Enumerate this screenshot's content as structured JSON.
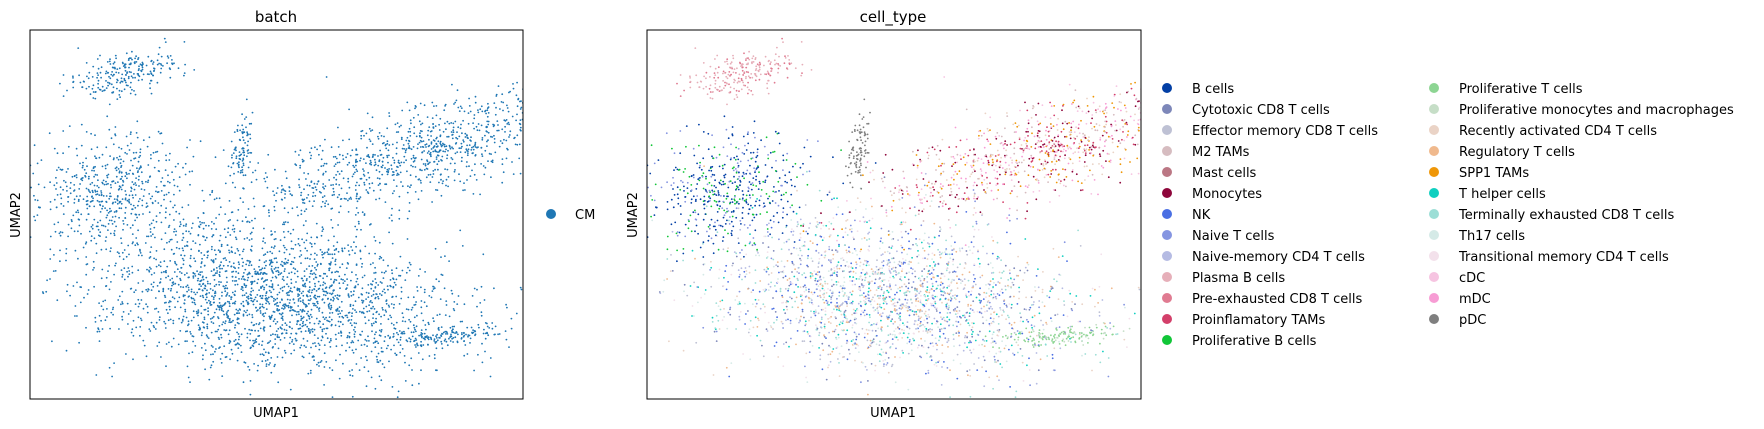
{
  "chart_data": [
    {
      "type": "scatter",
      "title": "batch",
      "xlabel": "UMAP1",
      "ylabel": "UMAP2",
      "grid": false,
      "ticks": "none",
      "legend_position": "right",
      "legend": [
        {
          "label": "CM",
          "color": "#1f77b4"
        }
      ]
    },
    {
      "type": "scatter",
      "title": "cell_type",
      "xlabel": "UMAP1",
      "ylabel": "UMAP2",
      "grid": false,
      "ticks": "none",
      "legend_position": "right",
      "legend": [
        {
          "label": "B cells",
          "color": "#023fa5"
        },
        {
          "label": "Cytotoxic CD8 T cells",
          "color": "#7d87b9"
        },
        {
          "label": "Effector memory CD8 T cells",
          "color": "#bec1d4"
        },
        {
          "label": "M2 TAMs",
          "color": "#d6bcc0"
        },
        {
          "label": "Mast cells",
          "color": "#bb7784"
        },
        {
          "label": "Monocytes",
          "color": "#8e063b"
        },
        {
          "label": "NK",
          "color": "#4a6fe3"
        },
        {
          "label": "Naive T cells",
          "color": "#8595e1"
        },
        {
          "label": "Naive-memory CD4 T cells",
          "color": "#b5bbe3"
        },
        {
          "label": "Plasma B cells",
          "color": "#e6afb9"
        },
        {
          "label": "Pre-exhausted CD8 T cells",
          "color": "#e07b91"
        },
        {
          "label": "Proinflamatory TAMs",
          "color": "#d33f6a"
        },
        {
          "label": "Proliferative B cells",
          "color": "#11c638"
        },
        {
          "label": "Proliferative T cells",
          "color": "#8dd593"
        },
        {
          "label": "Proliferative monocytes and macrophages",
          "color": "#c6dec7"
        },
        {
          "label": "Recently activated CD4 T cells",
          "color": "#ead3c6"
        },
        {
          "label": "Regulatory T cells",
          "color": "#f0b98d"
        },
        {
          "label": "SPP1 TAMs",
          "color": "#ef9708"
        },
        {
          "label": "T helper cells",
          "color": "#0fcfc0"
        },
        {
          "label": "Terminally exhausted CD8 T cells",
          "color": "#9cded6"
        },
        {
          "label": "Th17 cells",
          "color": "#d5eae7"
        },
        {
          "label": "Transitional memory CD4 T cells",
          "color": "#f3e1eb"
        },
        {
          "label": "cDC",
          "color": "#f6c4e1"
        },
        {
          "label": "mDC",
          "color": "#f79cd4"
        },
        {
          "label": "pDC",
          "color": "#7f7f7f"
        }
      ]
    }
  ]
}
